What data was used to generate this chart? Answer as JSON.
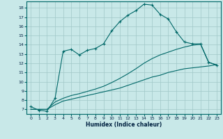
{
  "title": "",
  "xlabel": "Humidex (Indice chaleur)",
  "bg_color": "#c8e8e8",
  "grid_color": "#a0c8c8",
  "line_color": "#006868",
  "spine_color": "#006868",
  "xlim": [
    -0.5,
    23.5
  ],
  "ylim": [
    6.5,
    18.7
  ],
  "xticks": [
    0,
    1,
    2,
    3,
    4,
    5,
    6,
    7,
    8,
    9,
    10,
    11,
    12,
    13,
    14,
    15,
    16,
    17,
    18,
    19,
    20,
    21,
    22,
    23
  ],
  "yticks": [
    7,
    8,
    9,
    10,
    11,
    12,
    13,
    14,
    15,
    16,
    17,
    18
  ],
  "line1_x": [
    0,
    1,
    2,
    3,
    4,
    5,
    6,
    7,
    8,
    9,
    10,
    11,
    12,
    13,
    14,
    15,
    16,
    17,
    18,
    19,
    20,
    21,
    22,
    23
  ],
  "line1_y": [
    7.3,
    6.9,
    6.8,
    8.2,
    13.3,
    13.5,
    12.9,
    13.4,
    13.6,
    14.1,
    15.5,
    16.5,
    17.2,
    17.7,
    18.4,
    18.3,
    17.3,
    16.8,
    15.4,
    14.3,
    14.1,
    14.1,
    12.1,
    11.8
  ],
  "line2_x": [
    0,
    1,
    2,
    3,
    4,
    5,
    6,
    7,
    8,
    9,
    10,
    11,
    12,
    13,
    14,
    15,
    16,
    17,
    18,
    19,
    20,
    21,
    22,
    23
  ],
  "line2_y": [
    7.0,
    7.0,
    7.0,
    7.5,
    7.9,
    8.1,
    8.3,
    8.5,
    8.7,
    8.9,
    9.1,
    9.3,
    9.6,
    9.9,
    10.2,
    10.5,
    10.7,
    11.0,
    11.2,
    11.4,
    11.5,
    11.6,
    11.7,
    11.85
  ],
  "line3_x": [
    0,
    1,
    2,
    3,
    4,
    5,
    6,
    7,
    8,
    9,
    10,
    11,
    12,
    13,
    14,
    15,
    16,
    17,
    18,
    19,
    20,
    21,
    22,
    23
  ],
  "line3_y": [
    7.0,
    7.0,
    7.0,
    7.8,
    8.2,
    8.5,
    8.7,
    8.95,
    9.2,
    9.5,
    9.9,
    10.35,
    10.85,
    11.4,
    12.0,
    12.5,
    12.9,
    13.2,
    13.5,
    13.75,
    13.95,
    14.05,
    12.1,
    11.8
  ]
}
